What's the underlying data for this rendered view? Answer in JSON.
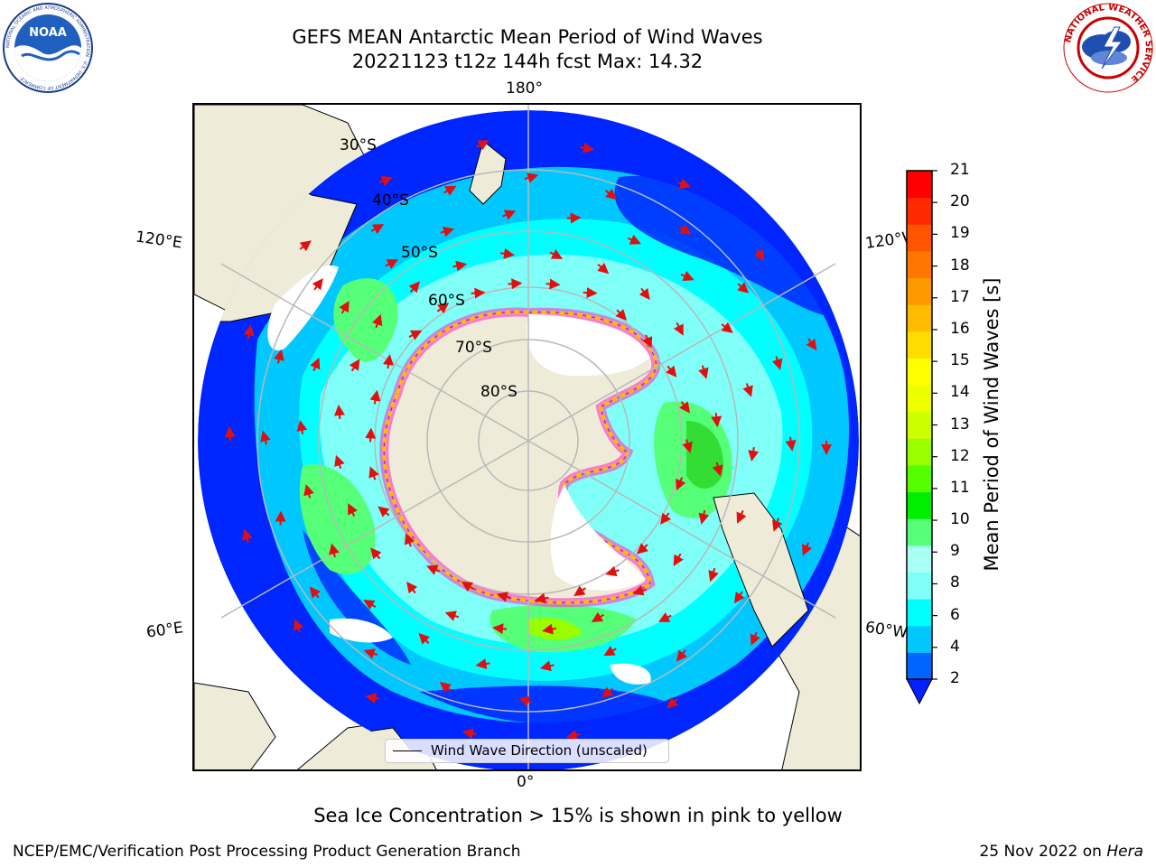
{
  "header": {
    "title_line1": "GEFS MEAN Antarctic Mean Period of Wind Waves",
    "title_line2": "20221123 t12z 144h fcst   Max: 14.32"
  },
  "logos": {
    "noaa_text": "NOAA",
    "noaa_ring_text": "NATIONAL OCEANIC AND ATMOSPHERIC ADMINISTRATION · U.S. DEPARTMENT OF COMMERCE",
    "nws_ring_text": "NATIONAL WEATHER SERVICE"
  },
  "map": {
    "longitude_labels": {
      "top": "180°",
      "bottom": "0°",
      "upper_left": "120°E",
      "upper_right": "120°W",
      "lower_left": "60°E",
      "lower_right": "60°W"
    },
    "latitude_labels": [
      "30°S",
      "40°S",
      "50°S",
      "60°S",
      "70°S",
      "80°S"
    ],
    "legend_label": "Wind Wave Direction (unscaled)",
    "colors": {
      "land": "#eeecd9",
      "ocean_deep": "#0026ff",
      "ocean_mid": "#00c8ff",
      "ocean_light": "#7ffff8",
      "sea_ice": "#ffffff",
      "arrow": "#e01010",
      "grid": "#b8b8b8"
    }
  },
  "colorbar": {
    "label": "Mean Period of Wind Waves [s]",
    "ticks": [
      "21",
      "20",
      "19",
      "18",
      "17",
      "16",
      "15",
      "14",
      "13",
      "12",
      "11",
      "10",
      "9",
      "8",
      "6",
      "4",
      "2"
    ],
    "colors_bottom_to_top": [
      "#0064ff",
      "#00c8ff",
      "#00ffff",
      "#7ffff8",
      "#aafff5",
      "#55ff77",
      "#00ee00",
      "#55ff00",
      "#99ff00",
      "#ccff00",
      "#eeff00",
      "#ffff00",
      "#ffdd00",
      "#ffbb00",
      "#ff9900",
      "#ff7700",
      "#ff5500",
      "#ff2a00",
      "#ff0000"
    ],
    "extend_color": "#0020ff"
  },
  "notes": {
    "ice_note": "Sea Ice Concentration > 15% is shown in pink to yellow",
    "footer_left": "NCEP/EMC/Verification Post Processing Product Generation Branch",
    "footer_right_date": "25 Nov 2022 on ",
    "footer_right_machine": "Hera"
  }
}
